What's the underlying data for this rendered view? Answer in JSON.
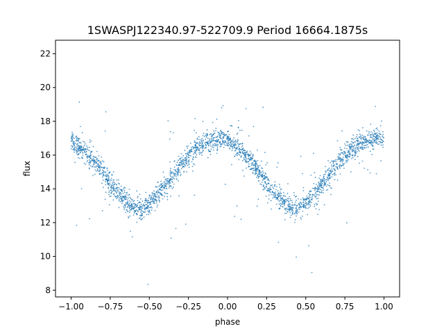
{
  "chart_data": {
    "type": "scatter",
    "title": "1SWASPJ122340.97-522709.9 Period 16664.1875s",
    "xlabel": "phase",
    "ylabel": "flux",
    "xlim": [
      -1.1,
      1.1
    ],
    "ylim": [
      7.6,
      22.8
    ],
    "xticks": [
      -1.0,
      -0.75,
      -0.5,
      -0.25,
      0.0,
      0.25,
      0.5,
      0.75,
      1.0
    ],
    "xtick_labels": [
      "−1.00",
      "−0.75",
      "−0.50",
      "−0.25",
      "0.00",
      "0.25",
      "0.50",
      "0.75",
      "1.00"
    ],
    "yticks": [
      8,
      10,
      12,
      14,
      16,
      18,
      20,
      22
    ],
    "ytick_labels": [
      "8",
      "10",
      "12",
      "14",
      "16",
      "18",
      "20",
      "22"
    ],
    "grid": false,
    "color": "#1f77b4",
    "series": [
      {
        "x": [
          -1.0,
          -0.95,
          -0.9,
          -0.85,
          -0.8,
          -0.75,
          -0.7,
          -0.65,
          -0.6,
          -0.55,
          -0.5,
          -0.45,
          -0.4,
          -0.35,
          -0.3,
          -0.25,
          -0.2,
          -0.15,
          -0.1,
          -0.05,
          0.0,
          0.05,
          0.1,
          0.15,
          0.2,
          0.25,
          0.3,
          0.35,
          0.4,
          0.45,
          0.5,
          0.55,
          0.6,
          0.65,
          0.7,
          0.75,
          0.8,
          0.85,
          0.9,
          0.95,
          1.0
        ],
        "y": [
          16.8,
          16.5,
          16.1,
          15.6,
          15.0,
          14.4,
          13.8,
          13.3,
          12.9,
          12.8,
          13.1,
          13.6,
          14.2,
          14.8,
          15.4,
          15.9,
          16.4,
          16.7,
          16.9,
          17.0,
          16.9,
          16.5,
          16.1,
          15.6,
          15.0,
          14.4,
          13.8,
          13.3,
          12.9,
          12.8,
          13.1,
          13.6,
          14.2,
          14.8,
          15.4,
          15.9,
          16.4,
          16.7,
          16.9,
          17.0,
          16.9
        ]
      }
    ]
  }
}
